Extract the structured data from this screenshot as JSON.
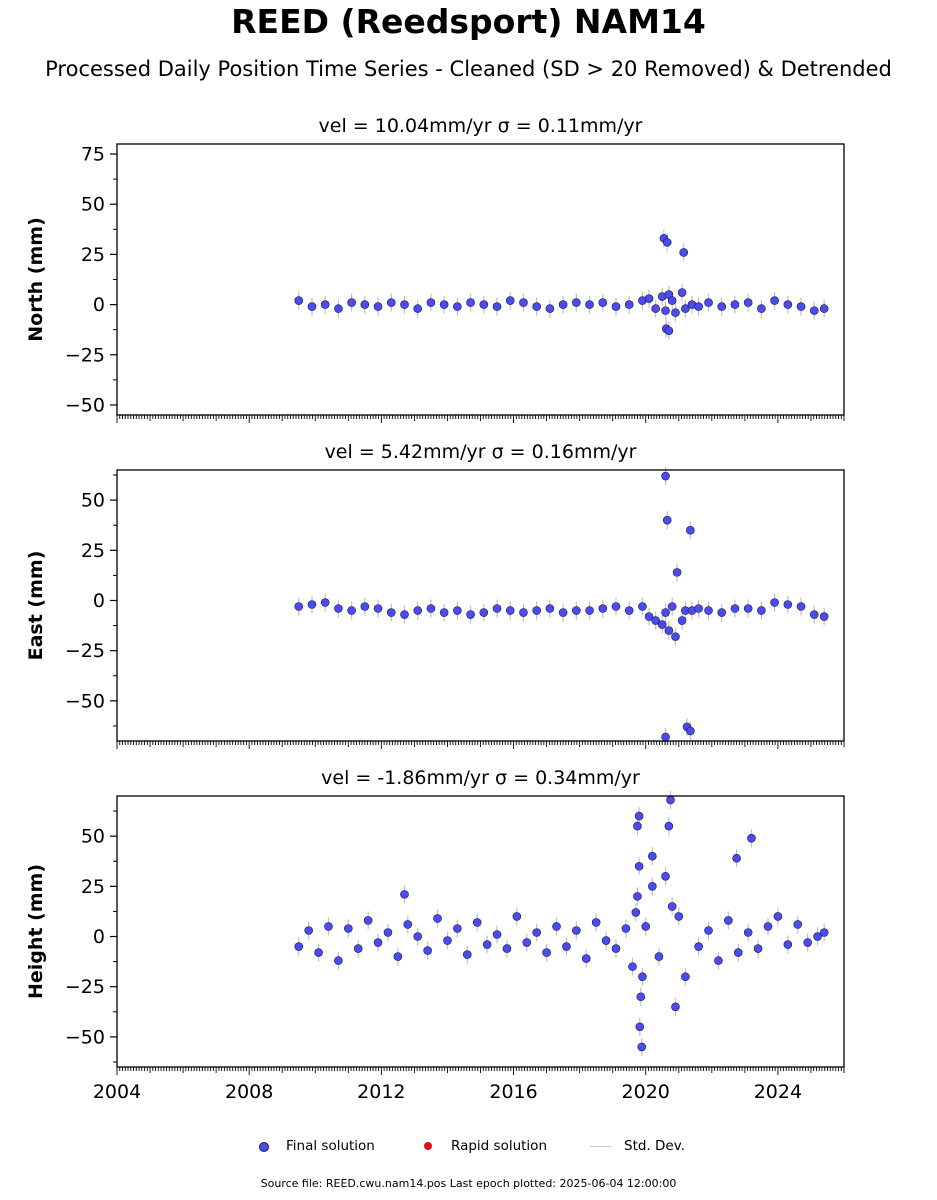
{
  "title": "REED (Reedsport) NAM14",
  "subtitle": "Processed Daily Position Time Series - Cleaned (SD > 20 Removed) & Detrended",
  "footer": "Source file: REED.cwu.nam14.pos  Last epoch plotted: 2025-06-04 12:00:00",
  "legend": {
    "final": "Final solution",
    "rapid": "Rapid solution",
    "std": "Std. Dev."
  },
  "colors": {
    "final": "#4b4bf0",
    "rapid": "#e01010",
    "std": "#bfbfbf"
  },
  "chart_data": [
    {
      "type": "scatter",
      "title": "vel = 10.04mm/yr   σ = 0.11mm/yr",
      "ylabel": "North (mm)",
      "xlim": [
        2004.0,
        2026.0
      ],
      "ylim": [
        -55,
        80
      ],
      "yticks": [
        -50,
        -25,
        0,
        25,
        50,
        75
      ],
      "xticks": [
        2004,
        2008,
        2012,
        2016,
        2020,
        2024
      ],
      "show_xtick_labels": false,
      "series": [
        {
          "name": "Final solution",
          "x": [
            2009.5,
            2009.9,
            2010.3,
            2010.7,
            2011.1,
            2011.5,
            2011.9,
            2012.3,
            2012.7,
            2013.1,
            2013.5,
            2013.9,
            2014.3,
            2014.7,
            2015.1,
            2015.5,
            2015.9,
            2016.3,
            2016.7,
            2017.1,
            2017.5,
            2017.9,
            2018.3,
            2018.7,
            2019.1,
            2019.5,
            2019.9,
            2020.1,
            2020.3,
            2020.5,
            2020.6,
            2020.7,
            2020.8,
            2020.9,
            2021.1,
            2021.2,
            2021.4,
            2021.6,
            2021.9,
            2022.3,
            2022.7,
            2023.1,
            2023.5,
            2023.9,
            2024.3,
            2024.7,
            2025.1,
            2025.4,
            2020.55,
            2020.65,
            2021.15,
            2020.62,
            2020.7
          ],
          "y": [
            2,
            -1,
            0,
            -2,
            1,
            0,
            -1,
            1,
            0,
            -2,
            1,
            0,
            -1,
            1,
            0,
            -1,
            2,
            1,
            -1,
            -2,
            0,
            1,
            0,
            1,
            -1,
            0,
            2,
            3,
            -2,
            4,
            -3,
            5,
            2,
            -4,
            6,
            -2,
            0,
            -1,
            1,
            -1,
            0,
            1,
            -2,
            2,
            0,
            -1,
            -3,
            -2,
            33,
            31,
            26,
            -12,
            -13
          ]
        }
      ]
    },
    {
      "type": "scatter",
      "title": "vel = 5.42mm/yr   σ = 0.16mm/yr",
      "ylabel": "East (mm)",
      "xlim": [
        2004.0,
        2026.0
      ],
      "ylim": [
        -70,
        65
      ],
      "yticks": [
        -50,
        -25,
        0,
        25,
        50
      ],
      "xticks": [
        2004,
        2008,
        2012,
        2016,
        2020,
        2024
      ],
      "show_xtick_labels": false,
      "series": [
        {
          "name": "Final solution",
          "x": [
            2009.5,
            2009.9,
            2010.3,
            2010.7,
            2011.1,
            2011.5,
            2011.9,
            2012.3,
            2012.7,
            2013.1,
            2013.5,
            2013.9,
            2014.3,
            2014.7,
            2015.1,
            2015.5,
            2015.9,
            2016.3,
            2016.7,
            2017.1,
            2017.5,
            2017.9,
            2018.3,
            2018.7,
            2019.1,
            2019.5,
            2019.9,
            2020.1,
            2020.3,
            2020.5,
            2020.6,
            2020.7,
            2020.8,
            2020.9,
            2021.1,
            2021.2,
            2021.4,
            2021.6,
            2021.9,
            2022.3,
            2022.7,
            2023.1,
            2023.5,
            2023.9,
            2024.3,
            2024.7,
            2025.1,
            2025.4,
            2020.6,
            2020.65,
            2021.35,
            2020.95,
            2021.25,
            2021.35,
            2020.6
          ],
          "y": [
            -3,
            -2,
            -1,
            -4,
            -5,
            -3,
            -4,
            -6,
            -7,
            -5,
            -4,
            -6,
            -5,
            -7,
            -6,
            -4,
            -5,
            -6,
            -5,
            -4,
            -6,
            -5,
            -5,
            -4,
            -3,
            -5,
            -3,
            -8,
            -10,
            -12,
            -6,
            -15,
            -3,
            -18,
            -10,
            -5,
            -5,
            -4,
            -5,
            -6,
            -4,
            -4,
            -5,
            -1,
            -2,
            -3,
            -7,
            -8,
            62,
            40,
            35,
            14,
            -63,
            -65,
            -68
          ]
        }
      ]
    },
    {
      "type": "scatter",
      "title": "vel = -1.86mm/yr   σ = 0.34mm/yr",
      "ylabel": "Height (mm)",
      "xlim": [
        2004.0,
        2026.0
      ],
      "ylim": [
        -65,
        70
      ],
      "yticks": [
        -50,
        -25,
        0,
        25,
        50
      ],
      "xticks": [
        2004,
        2008,
        2012,
        2016,
        2020,
        2024
      ],
      "show_xtick_labels": true,
      "series": [
        {
          "name": "Final solution",
          "x": [
            2009.5,
            2009.8,
            2010.1,
            2010.4,
            2010.7,
            2011.0,
            2011.3,
            2011.6,
            2011.9,
            2012.2,
            2012.5,
            2012.8,
            2013.1,
            2013.4,
            2013.7,
            2014.0,
            2014.3,
            2014.6,
            2014.9,
            2015.2,
            2015.5,
            2015.8,
            2016.1,
            2016.4,
            2016.7,
            2017.0,
            2017.3,
            2017.6,
            2017.9,
            2018.2,
            2018.5,
            2018.8,
            2019.1,
            2019.4,
            2019.6,
            2019.7,
            2019.75,
            2019.8,
            2019.85,
            2019.9,
            2020.0,
            2020.2,
            2020.4,
            2020.6,
            2020.8,
            2020.9,
            2021.0,
            2021.2,
            2021.6,
            2021.9,
            2022.2,
            2022.5,
            2022.8,
            2023.1,
            2023.4,
            2023.7,
            2024.0,
            2024.3,
            2024.6,
            2024.9,
            2025.2,
            2025.4,
            2019.75,
            2019.8,
            2019.82,
            2019.88,
            2020.2,
            2020.7,
            2020.75,
            2022.75,
            2023.2,
            2012.7
          ],
          "y": [
            -5,
            3,
            -8,
            5,
            -12,
            4,
            -6,
            8,
            -3,
            2,
            -10,
            6,
            0,
            -7,
            9,
            -2,
            4,
            -9,
            7,
            -4,
            1,
            -6,
            10,
            -3,
            2,
            -8,
            5,
            -5,
            3,
            -11,
            7,
            -2,
            -6,
            4,
            -15,
            12,
            20,
            35,
            -30,
            -20,
            5,
            25,
            -10,
            30,
            15,
            -35,
            10,
            -20,
            -5,
            3,
            -12,
            8,
            -8,
            2,
            -6,
            5,
            10,
            -4,
            6,
            -3,
            0,
            2,
            55,
            60,
            -45,
            -55,
            40,
            55,
            68,
            39,
            49,
            21
          ]
        }
      ]
    }
  ]
}
